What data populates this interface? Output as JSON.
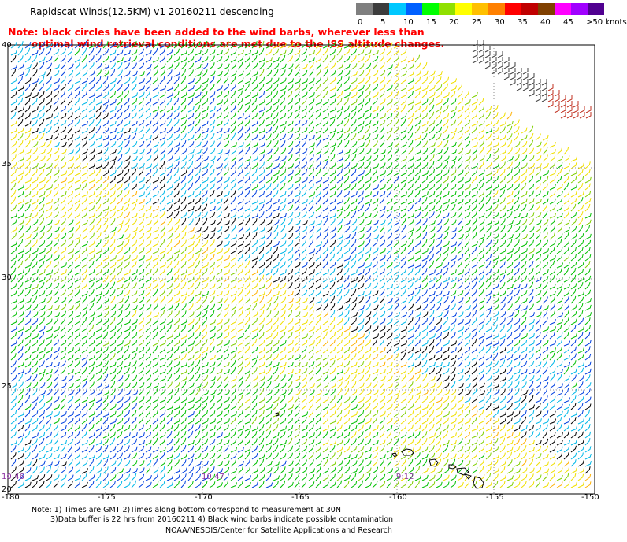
{
  "title": "Rapidscat Winds(12.5KM) v1 20160211 descending",
  "notes": [
    "Note: black circles have been added to the wind barbs, wherever less than",
    "optimal wind retrieval conditions are met due to the ISS altitude changes."
  ],
  "scale": {
    "labels": [
      "0",
      "5",
      "10",
      "15",
      "20",
      "25",
      "30",
      "35",
      "40",
      "45",
      ">50 knots"
    ],
    "colors": [
      "#7f7f7f",
      "#3c3c3c",
      "#00c8ff",
      "#0060ff",
      "#00ff00",
      "#90e000",
      "#ffff00",
      "#ffc000",
      "#ff8000",
      "#ff0000",
      "#c00000",
      "#804000",
      "#ff00ff",
      "#a000ff",
      "#500090"
    ]
  },
  "map": {
    "lat_labels": [
      "40",
      "35",
      "30",
      "25",
      "20"
    ],
    "lon_labels": [
      "-180",
      "-175",
      "-170",
      "-165",
      "-160",
      "-155",
      "-150"
    ],
    "time_labels": [
      "10:46",
      "10:47",
      "9:12"
    ],
    "colors": {
      "land": "#000000",
      "grid": "#707070"
    }
  },
  "footer": [
    "Note: 1) Times are GMT 2)Times along bottom correspond to measurement at 30N",
    "3)Data buffer is 22 hrs from 20160211 4) Black wind barbs indicate possible contamination",
    "NOAA/NESDIS/Center for Satellite Applications and Research"
  ]
}
